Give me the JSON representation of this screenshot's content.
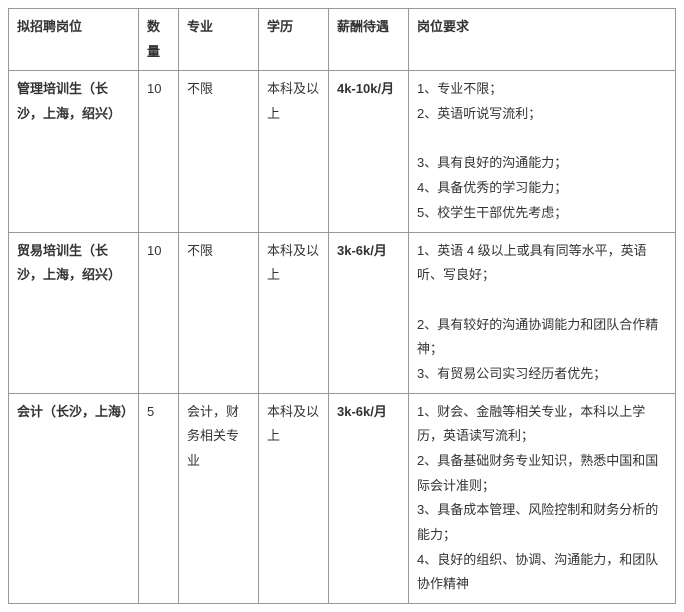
{
  "columns": [
    "拟招聘岗位",
    "数量",
    "专业",
    "学历",
    "薪酬待遇",
    "岗位要求"
  ],
  "rows": [
    {
      "position": "管理培训生（长沙，上海，绍兴）",
      "qty": "10",
      "major": "不限",
      "edu": "本科及以上",
      "salary": "4k-10k/月",
      "reqs": [
        "1、专业不限；",
        "2、英语听说写流利；",
        "",
        "3、具有良好的沟通能力；",
        "4、具备优秀的学习能力；",
        "5、校学生干部优先考虑；"
      ]
    },
    {
      "position": "贸易培训生（长沙，上海，绍兴）",
      "qty": "10",
      "major": "不限",
      "edu": "本科及以上",
      "salary": "3k-6k/月",
      "reqs": [
        "1、英语 4 级以上或具有同等水平，英语听、写良好；",
        "",
        "2、具有较好的沟通协调能力和团队合作精神；",
        "3、有贸易公司实习经历者优先；"
      ]
    },
    {
      "position": "会计（长沙，上海）",
      "qty": "5",
      "major": "会计，财务相关专业",
      "edu": "本科及以上",
      "salary": "3k-6k/月",
      "reqs": [
        "1、财会、金融等相关专业，本科以上学历，英语读写流利；",
        "2、具备基础财务专业知识，熟悉中国和国际会计准则；",
        "3、具备成本管理、风险控制和财务分析的能力；",
        "4、良好的组织、协调、沟通能力，和团队协作精神"
      ]
    }
  ]
}
